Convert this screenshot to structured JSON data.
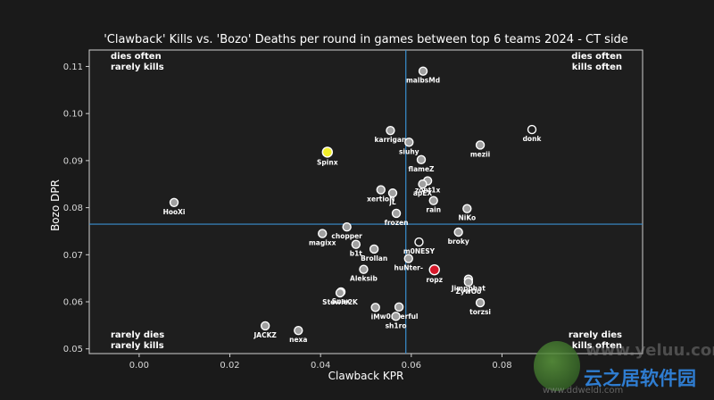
{
  "chart_data": {
    "type": "scatter",
    "title": "'Clawback' Kills vs. 'Bozo' Deaths per round in games between top 6 teams 2024 - CT side",
    "xlabel": "Clawback KPR",
    "ylabel": "Bozo DPR",
    "xlim": [
      -0.011,
      0.111
    ],
    "ylim": [
      0.049,
      0.1135
    ],
    "x_ticks": [
      0.0,
      0.02,
      0.04,
      0.06,
      0.08
    ],
    "x_tick_labels": [
      "0.00",
      "0.02",
      "0.04",
      "0.06",
      "0.08"
    ],
    "y_ticks": [
      0.05,
      0.06,
      0.07,
      0.08,
      0.09,
      0.1,
      0.11
    ],
    "y_tick_labels": [
      "0.05",
      "0.06",
      "0.07",
      "0.08",
      "0.09",
      "0.10",
      "0.11"
    ],
    "grid": false,
    "reference_lines": {
      "x": 0.0588,
      "y": 0.0765
    },
    "quadrant_labels": {
      "top_left": [
        "dies often",
        "rarely kills"
      ],
      "top_right": [
        "dies often",
        "kills often"
      ],
      "bottom_left": [
        "rarely dies",
        "rarely kills"
      ],
      "bottom_right": [
        "rarely dies",
        "kills often"
      ]
    },
    "points": [
      {
        "name": "malbsMd",
        "x": 0.0626,
        "y": 0.109,
        "style": "default"
      },
      {
        "name": "donk",
        "x": 0.0866,
        "y": 0.0966,
        "style": "hollow"
      },
      {
        "name": "karrigan",
        "x": 0.0554,
        "y": 0.0964,
        "style": "default"
      },
      {
        "name": "siuhy",
        "x": 0.0595,
        "y": 0.0939,
        "style": "default"
      },
      {
        "name": "mezii",
        "x": 0.0752,
        "y": 0.0933,
        "style": "default"
      },
      {
        "name": "Spinx",
        "x": 0.0415,
        "y": 0.0918,
        "style": "yellow"
      },
      {
        "name": "flameZ",
        "x": 0.0622,
        "y": 0.0902,
        "style": "default"
      },
      {
        "name": "zont1x",
        "x": 0.0636,
        "y": 0.0857,
        "style": "default"
      },
      {
        "name": "apEX",
        "x": 0.0625,
        "y": 0.085,
        "style": "default"
      },
      {
        "name": "xertioN",
        "x": 0.0533,
        "y": 0.0838,
        "style": "default"
      },
      {
        "name": "jL",
        "x": 0.0559,
        "y": 0.0831,
        "style": "default"
      },
      {
        "name": "rain",
        "x": 0.0649,
        "y": 0.0815,
        "style": "default"
      },
      {
        "name": "HooXi",
        "x": 0.0077,
        "y": 0.0811,
        "style": "default"
      },
      {
        "name": "NiKo",
        "x": 0.0723,
        "y": 0.0798,
        "style": "default"
      },
      {
        "name": "frozen",
        "x": 0.0567,
        "y": 0.0788,
        "style": "default"
      },
      {
        "name": "chopper",
        "x": 0.0458,
        "y": 0.0759,
        "style": "default"
      },
      {
        "name": "broky",
        "x": 0.0704,
        "y": 0.0748,
        "style": "default"
      },
      {
        "name": "magixx",
        "x": 0.0404,
        "y": 0.0745,
        "style": "default"
      },
      {
        "name": "m0NESY",
        "x": 0.0617,
        "y": 0.0727,
        "style": "hollow"
      },
      {
        "name": "b1t",
        "x": 0.0478,
        "y": 0.0722,
        "style": "default"
      },
      {
        "name": "Brollan",
        "x": 0.0518,
        "y": 0.0712,
        "style": "default"
      },
      {
        "name": "huNter-",
        "x": 0.0594,
        "y": 0.0692,
        "style": "default"
      },
      {
        "name": "Aleksib",
        "x": 0.0495,
        "y": 0.0669,
        "style": "default"
      },
      {
        "name": "ropz",
        "x": 0.0651,
        "y": 0.0668,
        "style": "red"
      },
      {
        "name": "Jimpphat",
        "x": 0.0726,
        "y": 0.0648,
        "style": "default"
      },
      {
        "name": "ZywOo",
        "x": 0.0726,
        "y": 0.0642,
        "style": "default"
      },
      {
        "name": "Snax",
        "x": 0.0445,
        "y": 0.0621,
        "style": "default"
      },
      {
        "name": "Stewie2K",
        "x": 0.0443,
        "y": 0.0619,
        "style": "default"
      },
      {
        "name": "torzsi",
        "x": 0.0752,
        "y": 0.0598,
        "style": "default"
      },
      {
        "name": "w0nderful",
        "x": 0.0573,
        "y": 0.0589,
        "style": "default"
      },
      {
        "name": "iM",
        "x": 0.0521,
        "y": 0.0588,
        "style": "default"
      },
      {
        "name": "sh1ro",
        "x": 0.0566,
        "y": 0.0569,
        "style": "default"
      },
      {
        "name": "JACKZ",
        "x": 0.0278,
        "y": 0.0549,
        "style": "default"
      },
      {
        "name": "nexa",
        "x": 0.0351,
        "y": 0.0539,
        "style": "default"
      }
    ]
  },
  "watermark": {
    "site": "www.yeluu.com",
    "brand": "云之居软件园",
    "domain": "www.ddweldi.com"
  }
}
